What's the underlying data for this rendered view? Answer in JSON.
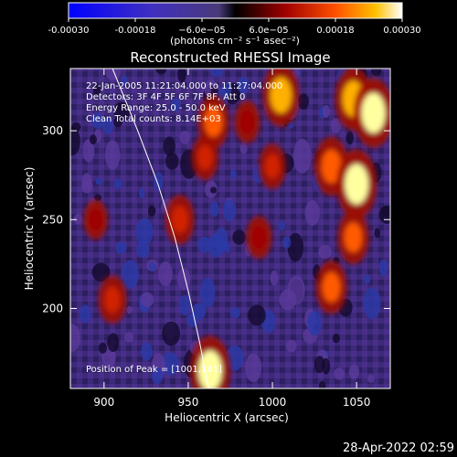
{
  "colorbar": {
    "ticks": [
      {
        "value": -0.0003,
        "label": "-0.00030"
      },
      {
        "value": -0.00018,
        "label": "-0.00018"
      },
      {
        "value": -6e-05,
        "label": "−6.0e−05"
      },
      {
        "value": 6e-05,
        "label": "6.0e−05"
      },
      {
        "value": 0.00018,
        "label": "0.00018"
      },
      {
        "value": 0.0003,
        "label": "0.00030"
      }
    ],
    "range": [
      -0.0003,
      0.0003
    ],
    "units_label": "(photons cm⁻² s⁻¹ asec⁻²)"
  },
  "chart_data": {
    "type": "heatmap",
    "title": "Reconstructed RHESSI Image",
    "xlabel": "Heliocentric X (arcsec)",
    "ylabel": "Heliocentric Y (arcsec)",
    "xlim": [
      880,
      1070
    ],
    "ylim": [
      155,
      335
    ],
    "x_ticks": [
      {
        "value": 900,
        "label": "900"
      },
      {
        "value": 950,
        "label": "950"
      },
      {
        "value": 1000,
        "label": "1000"
      },
      {
        "value": 1050,
        "label": "1050"
      }
    ],
    "y_ticks": [
      {
        "value": 200,
        "label": "200"
      },
      {
        "value": 250,
        "label": "250"
      },
      {
        "value": 300,
        "label": "300"
      }
    ],
    "annotations": [
      "22-Jan-2005 11:21:04.000 to 11:27:04.000",
      "Detectors: 3F 4F 5F 6F 7F 8F, Att 0",
      "Energy Range: 25.0 - 50.0 keV",
      "Clean     Total counts: 8.14E+03"
    ],
    "peak_label": "Position of Peak = [1001,161]",
    "limb_curve": [
      [
        905,
        335
      ],
      [
        920,
        300
      ],
      [
        932,
        270
      ],
      [
        942,
        240
      ],
      [
        950,
        210
      ],
      [
        957,
        180
      ],
      [
        962,
        155
      ]
    ],
    "bright_regions": [
      {
        "x": 963,
        "y": 165,
        "level": 0.0003
      },
      {
        "x": 1005,
        "y": 320,
        "level": 0.00025
      },
      {
        "x": 1048,
        "y": 318,
        "level": 0.00025
      },
      {
        "x": 1060,
        "y": 310,
        "level": 0.0003
      },
      {
        "x": 1035,
        "y": 280,
        "level": 0.00022
      },
      {
        "x": 1050,
        "y": 270,
        "level": 0.0003
      },
      {
        "x": 1048,
        "y": 240,
        "level": 0.00018
      },
      {
        "x": 1035,
        "y": 212,
        "level": 0.00018
      },
      {
        "x": 965,
        "y": 305,
        "level": 0.00018
      },
      {
        "x": 960,
        "y": 285,
        "level": 0.00012
      },
      {
        "x": 945,
        "y": 250,
        "level": 0.00015
      },
      {
        "x": 905,
        "y": 205,
        "level": 0.00014
      },
      {
        "x": 895,
        "y": 250,
        "level": 8e-05
      },
      {
        "x": 992,
        "y": 240,
        "level": 0.0001
      },
      {
        "x": 1000,
        "y": 280,
        "level": 0.00012
      },
      {
        "x": 985,
        "y": 305,
        "level": 0.0001
      }
    ]
  },
  "footer_timestamp": "28-Apr-2022 02:59"
}
